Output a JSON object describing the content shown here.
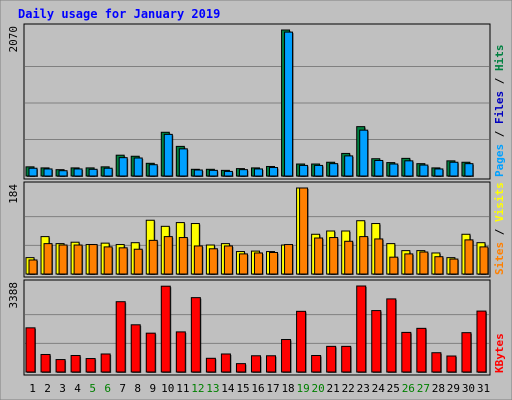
{
  "chart_data": {
    "type": "bar",
    "title": "Daily usage for January 2019",
    "categories": [
      "1",
      "2",
      "3",
      "4",
      "5",
      "6",
      "7",
      "8",
      "9",
      "10",
      "11",
      "12",
      "13",
      "14",
      "15",
      "16",
      "17",
      "18",
      "19",
      "20",
      "21",
      "22",
      "23",
      "24",
      "25",
      "26",
      "27",
      "28",
      "29",
      "30",
      "31"
    ],
    "weekend_days": [
      5,
      6,
      12,
      13,
      19,
      20,
      26,
      27
    ],
    "panels": [
      {
        "id": "hits-files-pages",
        "ymax_label": "2070",
        "ymax": 2070,
        "legend": [
          {
            "text": "Pages",
            "color": "#00a0ff"
          },
          {
            "text": "Files",
            "color": "#0000c0"
          },
          {
            "text": "Hits",
            "color": "#008040"
          }
        ],
        "series": [
          {
            "name": "Hits",
            "color": "#008040",
            "values": [
              130,
              115,
              90,
              115,
              115,
              130,
              295,
              280,
              180,
              620,
              420,
              95,
              95,
              80,
              105,
              115,
              135,
              2070,
              170,
              170,
              195,
              320,
              700,
              245,
              190,
              250,
              175,
              115,
              215,
              195,
              0
            ]
          },
          {
            "name": "Files",
            "color": "#00a0ff",
            "values": [
              110,
              100,
              75,
              100,
              95,
              110,
              260,
              255,
              160,
              590,
              385,
              85,
              80,
              65,
              90,
              100,
              120,
              2040,
              150,
              150,
              175,
              285,
              650,
              220,
              170,
              215,
              155,
              100,
              195,
              175,
              0
            ]
          }
        ]
      },
      {
        "id": "visits-sites",
        "ymax_label": "184",
        "ymax": 184,
        "legend": [
          {
            "text": "Sites",
            "color": "#ff8000"
          },
          {
            "text": "Visits",
            "color": "#ffff00"
          }
        ],
        "series": [
          {
            "name": "Visits",
            "color": "#ffff00",
            "values": [
              35,
              80,
              65,
              68,
              63,
              66,
              63,
              67,
              115,
              102,
              110,
              108,
              62,
              65,
              48,
              49,
              48,
              62,
              184,
              85,
              92,
              92,
              114,
              108,
              65,
              50,
              50,
              45,
              35,
              85,
              67
            ]
          },
          {
            "name": "Sites",
            "color": "#ff8000",
            "values": [
              30,
              65,
              62,
              62,
              63,
              58,
              56,
              53,
              72,
              80,
              78,
              60,
              54,
              60,
              43,
              45,
              46,
              63,
              184,
              77,
              78,
              70,
              80,
              75,
              36,
              43,
              47,
              37,
              32,
              73,
              58
            ]
          }
        ]
      },
      {
        "id": "kbytes",
        "ymax_label": "3388",
        "ymax": 3388,
        "legend": [
          {
            "text": "KBytes",
            "color": "#ff0000"
          }
        ],
        "series": [
          {
            "name": "KBytes",
            "color": "#ff0000",
            "values": [
              1740,
              690,
              490,
              650,
              530,
              710,
              2770,
              1860,
              1530,
              3380,
              1580,
              2930,
              540,
              710,
              330,
              640,
              640,
              1280,
              2390,
              650,
              1010,
              1010,
              3388,
              2420,
              2880,
              1560,
              1720,
              760,
              630,
              1550,
              2400
            ]
          }
        ]
      }
    ],
    "colors": {
      "background": "#ffffff",
      "frame_bg": "#c0c0c0",
      "title": "#0000ff",
      "grid": "#808080",
      "weekend_label": "#008000",
      "weekday_label": "#000000"
    }
  }
}
